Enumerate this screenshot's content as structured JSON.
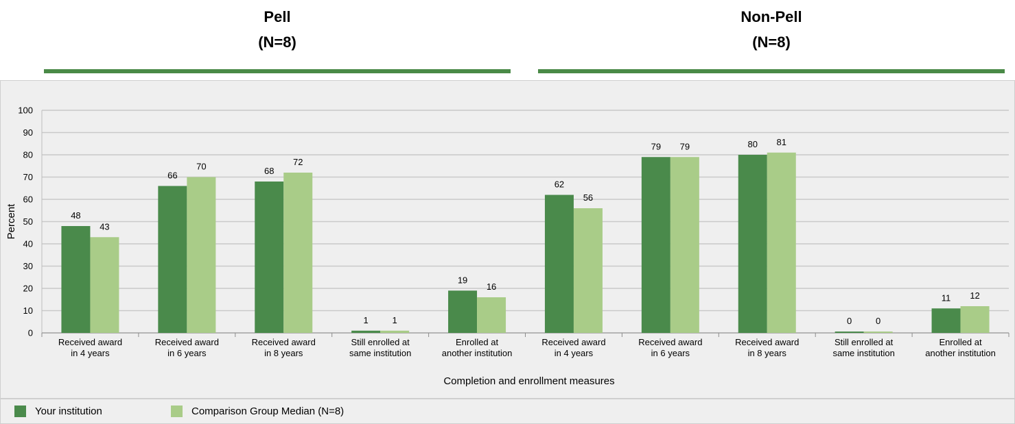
{
  "groups": [
    {
      "name": "Pell",
      "n": "(N=8)"
    },
    {
      "name": "Non-Pell",
      "n": "(N=8)"
    }
  ],
  "legend": {
    "series1": "Your institution",
    "series2": "Comparison Group Median (N=8)"
  },
  "colors": {
    "series1": "#4a8a4b",
    "series2": "#a9cc88",
    "group_rule": "#4a8a47"
  },
  "chart_data": {
    "type": "bar",
    "xlabel": "Completion and enrollment measures",
    "ylabel": "Percent",
    "ylim": [
      0,
      100
    ],
    "yticks": [
      0,
      10,
      20,
      30,
      40,
      50,
      60,
      70,
      80,
      90,
      100
    ],
    "grid": true,
    "legend_position": "bottom",
    "categories": [
      [
        "Received award",
        "in 4 years"
      ],
      [
        "Received award",
        "in 6 years"
      ],
      [
        "Received award",
        "in 8 years"
      ],
      [
        "Still enrolled at",
        "same institution"
      ],
      [
        "Enrolled at",
        "another institution"
      ],
      [
        "Received award",
        "in 4 years"
      ],
      [
        "Received award",
        "in 6 years"
      ],
      [
        "Received award",
        "in 8 years"
      ],
      [
        "Still enrolled at",
        "same institution"
      ],
      [
        "Enrolled at",
        "another institution"
      ]
    ],
    "series": [
      {
        "name": "Your institution",
        "values": [
          48,
          66,
          68,
          1,
          19,
          62,
          79,
          80,
          0,
          11
        ]
      },
      {
        "name": "Comparison Group Median (N=8)",
        "values": [
          43,
          70,
          72,
          1,
          16,
          56,
          79,
          81,
          0,
          12
        ]
      }
    ]
  }
}
